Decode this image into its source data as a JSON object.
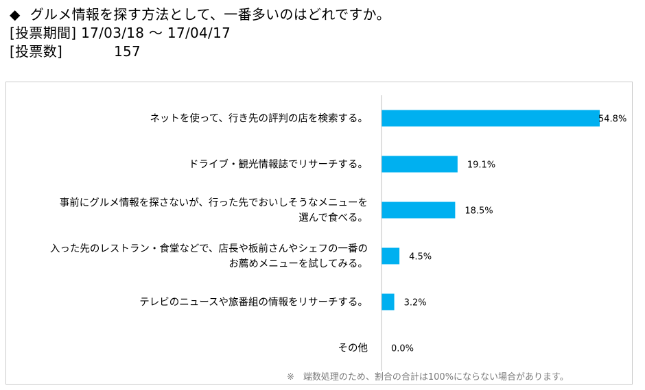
{
  "header": {
    "title_prefix": "◆",
    "title": "グルメ情報を探す方法として、一番多いのはどれですか。",
    "period_label": "[投票期間]",
    "period_value": "17/03/18 ～ 17/04/17",
    "count_label": "[投票数]",
    "count_value": "157"
  },
  "footnote": "※　端数処理のため、割合の合計は100%にならない場合があります。",
  "colors": {
    "bar": "#00b0f0",
    "axis": "#bfbfbf",
    "frame": "#c8c8c8"
  },
  "chart_data": {
    "type": "bar",
    "orientation": "horizontal",
    "categories": [
      [
        "ネットを使って、行き先の評判の店を検索する。"
      ],
      [
        "ドライブ・観光情報誌でリサーチする。"
      ],
      [
        "事前にグルメ情報を探さないが、行った先でおいしそうなメニューを",
        "選んで食べる。"
      ],
      [
        "入った先のレストラン・食堂などで、店長や板前さんやシェフの一番の",
        "お薦めメニューを試してみる。"
      ],
      [
        "テレビのニュースや旅番組の情報をリサーチする。"
      ],
      [
        "その他"
      ]
    ],
    "values": [
      54.8,
      19.1,
      18.5,
      4.5,
      3.2,
      0.0
    ],
    "value_labels": [
      "54.8%",
      "19.1%",
      "18.5%",
      "4.5%",
      "3.2%",
      "0.0%"
    ],
    "xlim": [
      0,
      54.8
    ],
    "grid": false,
    "legend": "none"
  }
}
